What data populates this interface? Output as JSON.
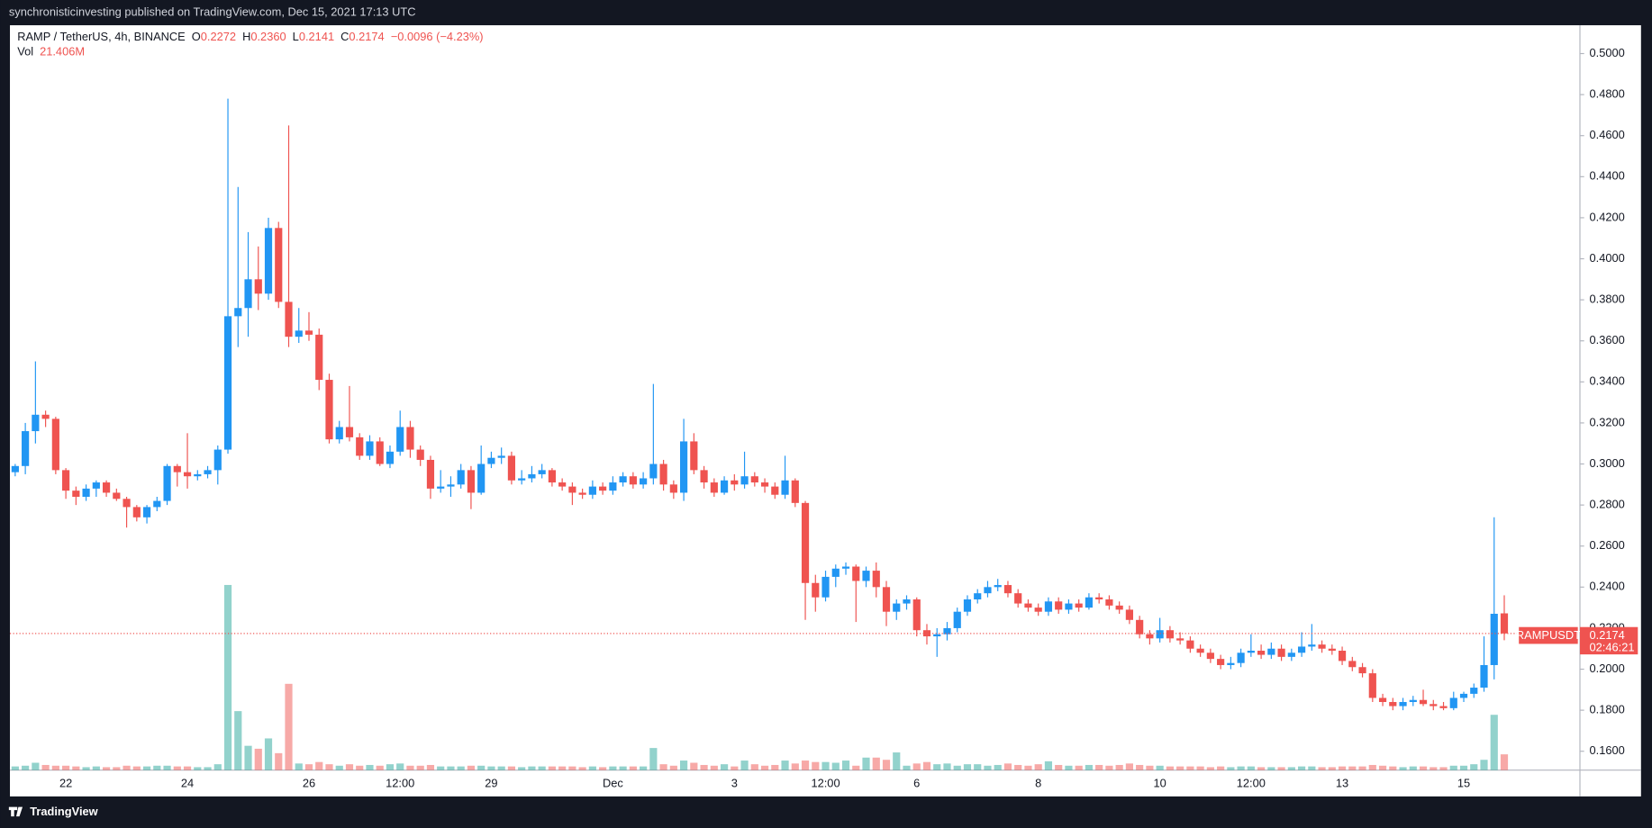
{
  "header": {
    "publisher": "synchronisticinvesting published on TradingView.com, Dec 15, 2021 17:13 UTC",
    "brand": "TradingView"
  },
  "chart_data": {
    "type": "candlestick",
    "title": "RAMP / TetherUS, 4h, BINANCE",
    "legend": [
      {
        "label": "O",
        "value": "0.2272"
      },
      {
        "label": "H",
        "value": "0.2360"
      },
      {
        "label": "L",
        "value": "0.2141"
      },
      {
        "label": "C",
        "value": "0.2174"
      }
    ],
    "change": "−0.0096 (−4.23%)",
    "volume_title": "Vol",
    "volume_label": "21.406M",
    "symbol_label": "RAMPUSDT",
    "countdown": "02:46:21",
    "up_color": "#2196f3",
    "down_color": "#ef5350",
    "volume_up_color": "#26a69a",
    "volume_down_color": "#ef5350",
    "grid": false,
    "ylim": [
      0.1508,
      0.5138
    ],
    "yticks": [
      {
        "value": 0.16,
        "label": "0.1600"
      },
      {
        "value": 0.18,
        "label": "0.1800"
      },
      {
        "value": 0.2,
        "label": "0.2000"
      },
      {
        "value": 0.22,
        "label": "0.2200"
      },
      {
        "value": 0.24,
        "label": "0.2400"
      },
      {
        "value": 0.26,
        "label": "0.2600"
      },
      {
        "value": 0.28,
        "label": "0.2800"
      },
      {
        "value": 0.3,
        "label": "0.3000"
      },
      {
        "value": 0.32,
        "label": "0.3200"
      },
      {
        "value": 0.34,
        "label": "0.3400"
      },
      {
        "value": 0.36,
        "label": "0.3600"
      },
      {
        "value": 0.38,
        "label": "0.3800"
      },
      {
        "value": 0.4,
        "label": "0.4000"
      },
      {
        "value": 0.42,
        "label": "0.4200"
      },
      {
        "value": 0.44,
        "label": "0.4400"
      },
      {
        "value": 0.46,
        "label": "0.4600"
      },
      {
        "value": 0.48,
        "label": "0.4800"
      },
      {
        "value": 0.5,
        "label": "0.5000"
      }
    ],
    "categories": [
      null,
      null,
      null,
      null,
      null,
      "22",
      null,
      null,
      null,
      null,
      null,
      null,
      null,
      null,
      null,
      null,
      null,
      "24",
      null,
      null,
      null,
      null,
      null,
      null,
      null,
      null,
      null,
      null,
      null,
      "26",
      null,
      null,
      null,
      null,
      null,
      null,
      null,
      null,
      "12:00",
      null,
      null,
      null,
      null,
      null,
      null,
      null,
      null,
      "29",
      null,
      null,
      null,
      null,
      null,
      null,
      null,
      null,
      null,
      null,
      null,
      "Dec",
      null,
      null,
      null,
      null,
      null,
      null,
      null,
      null,
      null,
      null,
      null,
      "3",
      null,
      null,
      null,
      null,
      null,
      null,
      null,
      null,
      "12:00",
      null,
      null,
      null,
      null,
      null,
      null,
      null,
      null,
      "6",
      null,
      null,
      null,
      null,
      null,
      null,
      null,
      null,
      null,
      null,
      null,
      "8",
      null,
      null,
      null,
      null,
      null,
      null,
      null,
      null,
      null,
      null,
      null,
      "10",
      null,
      null,
      null,
      null,
      null,
      null,
      null,
      null,
      "12:00",
      null,
      null,
      null,
      null,
      null,
      null,
      null,
      null,
      "13",
      null,
      null,
      null,
      null,
      null,
      null,
      null,
      null,
      null,
      null,
      null,
      "15",
      null,
      null,
      null,
      null
    ],
    "open": [
      0.296,
      0.299,
      0.316,
      0.324,
      0.322,
      0.297,
      0.287,
      0.284,
      0.288,
      0.291,
      0.286,
      0.283,
      0.279,
      0.274,
      0.279,
      0.282,
      0.299,
      0.296,
      0.294,
      0.295,
      0.297,
      0.307,
      0.372,
      0.376,
      0.39,
      0.383,
      0.415,
      0.379,
      0.362,
      0.365,
      0.363,
      0.341,
      0.312,
      0.318,
      0.313,
      0.304,
      0.311,
      0.3,
      0.306,
      0.318,
      0.307,
      0.302,
      0.288,
      0.289,
      0.29,
      0.297,
      0.286,
      0.3,
      0.303,
      0.304,
      0.292,
      0.293,
      0.295,
      0.297,
      0.291,
      0.289,
      0.286,
      0.285,
      0.289,
      0.287,
      0.291,
      0.294,
      0.29,
      0.293,
      0.3,
      0.29,
      0.286,
      0.311,
      0.297,
      0.291,
      0.286,
      0.292,
      0.29,
      0.294,
      0.291,
      0.289,
      0.285,
      0.292,
      0.281,
      0.242,
      0.235,
      0.245,
      0.249,
      0.25,
      0.243,
      0.248,
      0.24,
      0.228,
      0.232,
      0.234,
      0.219,
      0.216,
      0.217,
      0.22,
      0.228,
      0.234,
      0.237,
      0.24,
      0.241,
      0.237,
      0.232,
      0.23,
      0.228,
      0.233,
      0.229,
      0.232,
      0.23,
      0.235,
      0.234,
      0.231,
      0.229,
      0.224,
      0.217,
      0.215,
      0.219,
      0.215,
      0.214,
      0.21,
      0.208,
      0.205,
      0.202,
      0.203,
      0.208,
      0.209,
      0.207,
      0.21,
      0.206,
      0.208,
      0.211,
      0.212,
      0.21,
      0.209,
      0.204,
      0.201,
      0.198,
      0.186,
      0.184,
      0.182,
      0.184,
      0.185,
      0.183,
      0.182,
      0.181,
      0.186,
      0.188,
      0.191,
      0.202,
      0.2272
    ],
    "high": [
      0.3,
      0.32,
      0.35,
      0.326,
      0.323,
      0.298,
      0.289,
      0.29,
      0.292,
      0.292,
      0.288,
      0.284,
      0.28,
      0.28,
      0.284,
      0.3,
      0.3,
      0.315,
      0.297,
      0.299,
      0.309,
      0.478,
      0.435,
      0.413,
      0.406,
      0.42,
      0.418,
      0.465,
      0.376,
      0.374,
      0.366,
      0.344,
      0.321,
      0.338,
      0.315,
      0.314,
      0.313,
      0.309,
      0.326,
      0.321,
      0.309,
      0.304,
      0.297,
      0.294,
      0.3,
      0.299,
      0.309,
      0.306,
      0.308,
      0.306,
      0.297,
      0.299,
      0.3,
      0.298,
      0.293,
      0.291,
      0.288,
      0.292,
      0.291,
      0.294,
      0.296,
      0.296,
      0.296,
      0.339,
      0.302,
      0.292,
      0.322,
      0.315,
      0.299,
      0.293,
      0.294,
      0.295,
      0.306,
      0.296,
      0.293,
      0.291,
      0.304,
      0.293,
      0.282,
      0.246,
      0.248,
      0.251,
      0.252,
      0.251,
      0.25,
      0.252,
      0.243,
      0.234,
      0.236,
      0.235,
      0.222,
      0.22,
      0.223,
      0.23,
      0.236,
      0.239,
      0.243,
      0.244,
      0.243,
      0.239,
      0.234,
      0.232,
      0.235,
      0.235,
      0.234,
      0.234,
      0.237,
      0.237,
      0.236,
      0.233,
      0.231,
      0.226,
      0.219,
      0.225,
      0.221,
      0.218,
      0.216,
      0.212,
      0.21,
      0.207,
      0.206,
      0.21,
      0.217,
      0.212,
      0.213,
      0.212,
      0.21,
      0.218,
      0.222,
      0.214,
      0.212,
      0.211,
      0.206,
      0.203,
      0.2,
      0.188,
      0.186,
      0.186,
      0.187,
      0.19,
      0.185,
      0.184,
      0.189,
      0.189,
      0.193,
      0.216,
      0.274,
      0.236
    ],
    "low": [
      0.294,
      0.295,
      0.31,
      0.318,
      0.295,
      0.283,
      0.28,
      0.282,
      0.284,
      0.284,
      0.282,
      0.269,
      0.272,
      0.271,
      0.277,
      0.28,
      0.289,
      0.288,
      0.292,
      0.293,
      0.29,
      0.305,
      0.357,
      0.362,
      0.375,
      0.38,
      0.376,
      0.357,
      0.359,
      0.36,
      0.336,
      0.31,
      0.31,
      0.311,
      0.302,
      0.302,
      0.299,
      0.298,
      0.304,
      0.303,
      0.299,
      0.283,
      0.286,
      0.284,
      0.288,
      0.278,
      0.285,
      0.298,
      0.3,
      0.29,
      0.29,
      0.291,
      0.293,
      0.289,
      0.287,
      0.28,
      0.283,
      0.283,
      0.285,
      0.285,
      0.289,
      0.288,
      0.288,
      0.29,
      0.287,
      0.283,
      0.282,
      0.295,
      0.288,
      0.284,
      0.285,
      0.287,
      0.288,
      0.289,
      0.286,
      0.283,
      0.283,
      0.279,
      0.224,
      0.228,
      0.233,
      0.24,
      0.246,
      0.223,
      0.24,
      0.235,
      0.221,
      0.224,
      0.229,
      0.216,
      0.212,
      0.206,
      0.214,
      0.218,
      0.226,
      0.232,
      0.235,
      0.238,
      0.235,
      0.23,
      0.228,
      0.226,
      0.226,
      0.227,
      0.227,
      0.228,
      0.229,
      0.232,
      0.229,
      0.227,
      0.222,
      0.215,
      0.212,
      0.213,
      0.213,
      0.212,
      0.208,
      0.206,
      0.203,
      0.2,
      0.2,
      0.201,
      0.206,
      0.205,
      0.205,
      0.204,
      0.204,
      0.206,
      0.209,
      0.208,
      0.207,
      0.202,
      0.199,
      0.196,
      0.184,
      0.182,
      0.18,
      0.18,
      0.182,
      0.182,
      0.18,
      0.18,
      0.18,
      0.184,
      0.186,
      0.189,
      0.195,
      0.2141
    ],
    "close": [
      0.299,
      0.316,
      0.324,
      0.322,
      0.297,
      0.287,
      0.284,
      0.288,
      0.291,
      0.286,
      0.283,
      0.279,
      0.274,
      0.279,
      0.282,
      0.299,
      0.296,
      0.294,
      0.295,
      0.297,
      0.307,
      0.372,
      0.376,
      0.39,
      0.383,
      0.415,
      0.379,
      0.362,
      0.365,
      0.363,
      0.341,
      0.312,
      0.318,
      0.313,
      0.304,
      0.311,
      0.3,
      0.306,
      0.318,
      0.307,
      0.302,
      0.288,
      0.289,
      0.29,
      0.297,
      0.286,
      0.3,
      0.303,
      0.304,
      0.292,
      0.293,
      0.295,
      0.297,
      0.291,
      0.289,
      0.286,
      0.285,
      0.289,
      0.287,
      0.291,
      0.294,
      0.29,
      0.293,
      0.3,
      0.29,
      0.286,
      0.311,
      0.297,
      0.291,
      0.286,
      0.292,
      0.29,
      0.294,
      0.291,
      0.289,
      0.285,
      0.292,
      0.281,
      0.242,
      0.235,
      0.245,
      0.249,
      0.25,
      0.243,
      0.248,
      0.24,
      0.228,
      0.232,
      0.234,
      0.219,
      0.216,
      0.217,
      0.22,
      0.228,
      0.234,
      0.237,
      0.24,
      0.241,
      0.237,
      0.232,
      0.23,
      0.228,
      0.233,
      0.229,
      0.232,
      0.23,
      0.235,
      0.234,
      0.231,
      0.229,
      0.224,
      0.217,
      0.215,
      0.219,
      0.215,
      0.214,
      0.21,
      0.208,
      0.205,
      0.202,
      0.203,
      0.208,
      0.209,
      0.207,
      0.21,
      0.206,
      0.208,
      0.211,
      0.212,
      0.21,
      0.209,
      0.204,
      0.201,
      0.198,
      0.186,
      0.184,
      0.182,
      0.184,
      0.185,
      0.183,
      0.182,
      0.181,
      0.186,
      0.188,
      0.191,
      0.202,
      0.227,
      0.2174
    ],
    "volume": [
      5,
      6,
      10,
      7,
      6,
      6,
      5,
      4,
      5,
      4,
      4,
      6,
      5,
      5,
      6,
      6,
      5,
      5,
      4,
      4,
      8,
      251,
      80,
      33,
      29,
      43,
      23,
      117,
      9,
      8,
      11,
      8,
      6,
      8,
      6,
      7,
      6,
      8,
      9,
      6,
      6,
      7,
      5,
      5,
      5,
      6,
      6,
      5,
      5,
      5,
      4,
      5,
      5,
      5,
      5,
      5,
      4,
      5,
      4,
      5,
      5,
      5,
      5,
      30,
      8,
      6,
      13,
      10,
      7,
      6,
      8,
      5,
      13,
      8,
      6,
      7,
      13,
      9,
      13,
      11,
      11,
      10,
      13,
      6,
      17,
      17,
      14,
      24,
      6,
      9,
      11,
      8,
      9,
      6,
      8,
      8,
      6,
      7,
      9,
      7,
      6,
      8,
      12,
      7,
      6,
      6,
      7,
      7,
      6,
      7,
      9,
      7,
      6,
      6,
      5,
      5,
      5,
      5,
      4,
      5,
      4,
      5,
      5,
      4,
      4,
      4,
      4,
      5,
      5,
      4,
      4,
      5,
      5,
      5,
      7,
      6,
      5,
      4,
      5,
      5,
      4,
      4,
      6,
      6,
      8,
      14,
      75,
      21.406
    ]
  }
}
